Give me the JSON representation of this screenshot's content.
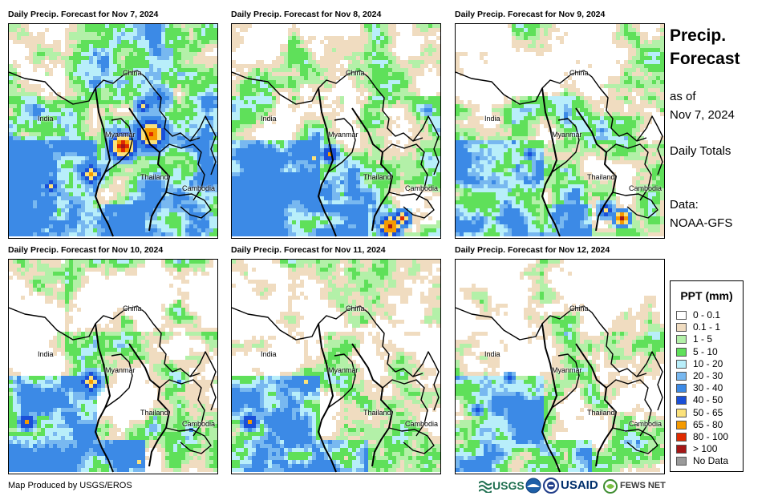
{
  "panels": [
    {
      "title": "Daily Precip. Forecast for Nov 7, 2024",
      "day": 7
    },
    {
      "title": "Daily Precip. Forecast for Nov 8, 2024",
      "day": 8
    },
    {
      "title": "Daily Precip. Forecast for Nov 9, 2024",
      "day": 9
    },
    {
      "title": "Daily Precip. Forecast for Nov 10, 2024",
      "day": 10
    },
    {
      "title": "Daily Precip. Forecast for Nov 11, 2024",
      "day": 11
    },
    {
      "title": "Daily Precip. Forecast for Nov 12, 2024",
      "day": 12
    }
  ],
  "map_labels": {
    "china": "China",
    "india": "India",
    "myanmar": "Myanmar",
    "thailand": "Thailand",
    "cambodia": "Cambodia"
  },
  "sidebar": {
    "title_line1": "Precip.",
    "title_line2": "Forecast",
    "as_of_label": "as of",
    "as_of_date": "Nov 7, 2024",
    "totals": "Daily Totals",
    "data_label": "Data:",
    "data_source": "NOAA-GFS"
  },
  "legend": {
    "title": "PPT (mm)",
    "items": [
      {
        "label": "0 - 0.1",
        "color": "#ffffff"
      },
      {
        "label": "0.1 - 1",
        "color": "#f0dcc0"
      },
      {
        "label": "1 - 5",
        "color": "#b3f0a8"
      },
      {
        "label": "5 - 10",
        "color": "#5fe05a"
      },
      {
        "label": "10 - 20",
        "color": "#b8eefa"
      },
      {
        "label": "20 - 30",
        "color": "#78b8f0"
      },
      {
        "label": "30 - 40",
        "color": "#3c8ae6"
      },
      {
        "label": "40 - 50",
        "color": "#1a4fd8"
      },
      {
        "label": "50 - 65",
        "color": "#fbe17a"
      },
      {
        "label": "65 - 80",
        "color": "#f59a00"
      },
      {
        "label": "80 - 100",
        "color": "#e02a00"
      },
      {
        "label": "> 100",
        "color": "#a51616"
      },
      {
        "label": "No Data",
        "color": "#9a9a9a"
      }
    ]
  },
  "footer": {
    "credit": "Map Produced by USGS/EROS",
    "logos": {
      "usgs": "USGS",
      "usaid": "USAID",
      "fewsnet": "FEWS NET"
    }
  }
}
